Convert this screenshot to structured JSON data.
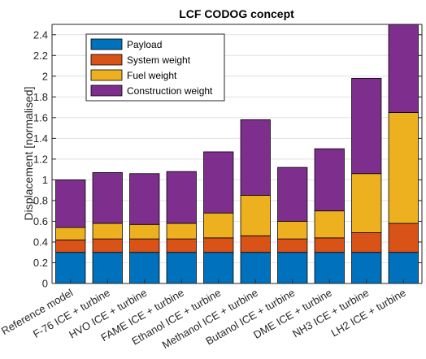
{
  "chart_data": {
    "type": "bar",
    "stacked": true,
    "title": "LCF CODOG concept",
    "xlabel": "",
    "ylabel": "Displacement [normalised]",
    "ylim": [
      0,
      2.5
    ],
    "yticks": [
      0,
      0.2,
      0.4,
      0.6,
      0.8,
      1,
      1.2,
      1.4,
      1.6,
      1.8,
      2,
      2.2,
      2.4
    ],
    "ytick_labels": [
      "0",
      "0.2",
      "0.4",
      "0.6",
      "0.8",
      "1",
      "1.2",
      "1.4",
      "1.6",
      "1.8",
      "2",
      "2.2",
      "2.4"
    ],
    "grid": true,
    "legend_position": "top-left",
    "categories": [
      "Reference model",
      "F-76 ICE + turbine",
      "HVO ICE + turbine",
      "FAME ICE + turbine",
      "Ethanol ICE + turbine",
      "Methanol ICE + turbine",
      "Butanol ICE + turbine",
      "DME ICE + turbine",
      "NH3 ICE + turbine",
      "LH2 ICE + turbine"
    ],
    "series": [
      {
        "name": "Payload",
        "color": "#0072BD",
        "values": [
          0.3,
          0.3,
          0.3,
          0.3,
          0.3,
          0.3,
          0.3,
          0.3,
          0.3,
          0.3
        ]
      },
      {
        "name": "System weight",
        "color": "#D95319",
        "values": [
          0.12,
          0.13,
          0.13,
          0.13,
          0.14,
          0.16,
          0.13,
          0.14,
          0.19,
          0.28
        ]
      },
      {
        "name": "Fuel weight",
        "color": "#EDB120",
        "values": [
          0.12,
          0.15,
          0.14,
          0.15,
          0.24,
          0.39,
          0.17,
          0.26,
          0.57,
          1.07
        ]
      },
      {
        "name": "Construction weight",
        "color": "#7E2F8E",
        "values": [
          0.46,
          0.49,
          0.49,
          0.5,
          0.59,
          0.73,
          0.52,
          0.6,
          0.92,
          0.87
        ]
      }
    ]
  }
}
